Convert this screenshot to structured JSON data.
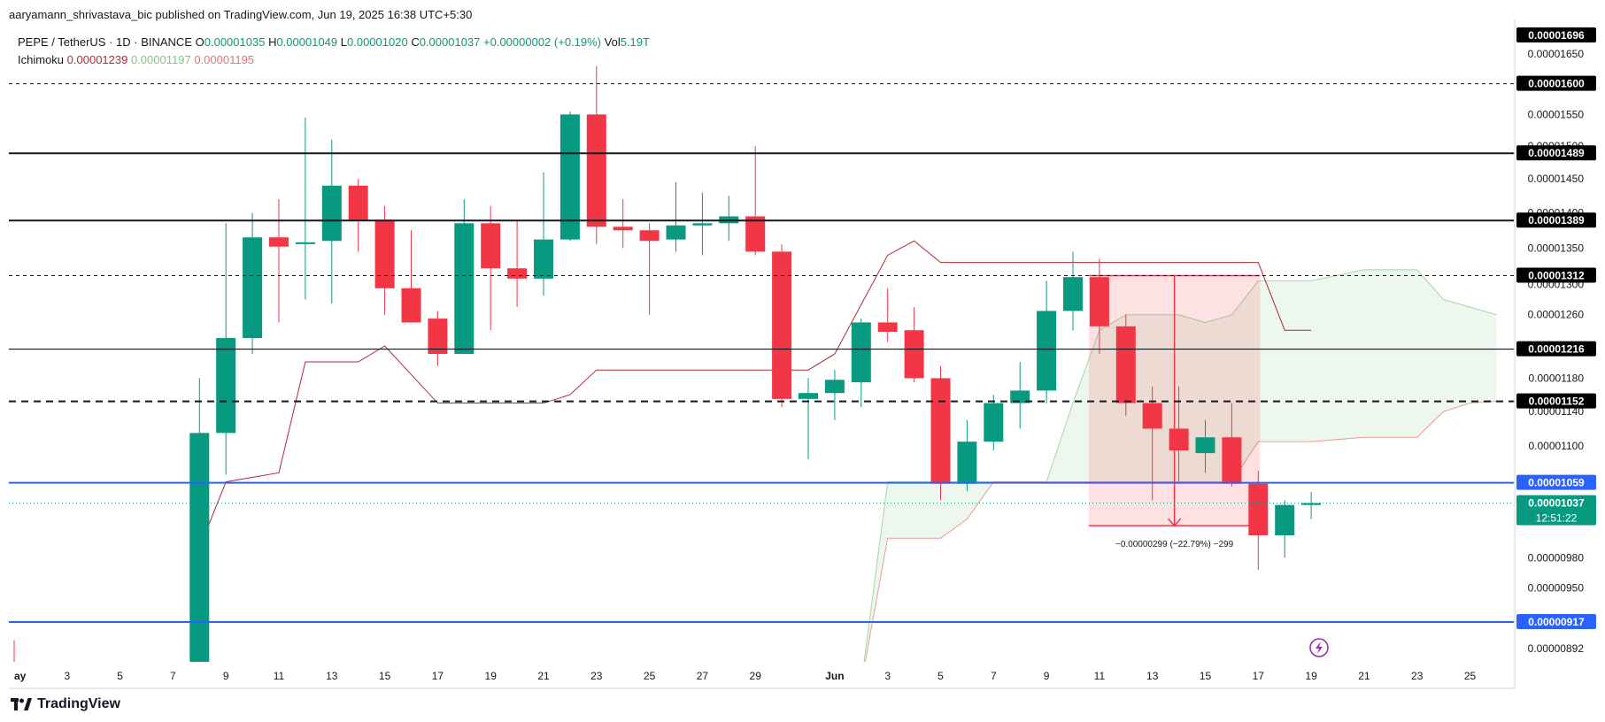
{
  "publish_line": "aaryamann_shrivastava_bic published on TradingView.com, Jun 19, 2025 16:38 UTC+5:30",
  "legend": {
    "symbol": "PEPE / TetherUS · 1D · BINANCE",
    "o_label": "O",
    "o_value": "0.00001035",
    "h_label": "H",
    "h_value": "0.00001049",
    "l_label": "L",
    "l_value": "0.00001020",
    "c_label": "C",
    "c_value": "0.00001037",
    "change": "+0.00000002 (+0.19%)",
    "vol_label": "Vol",
    "vol_value": "5.19T",
    "ichimoku_label": "Ichimoku",
    "ichimoku_values": [
      "0.00001239",
      "0.00001197",
      "0.00001195"
    ]
  },
  "footer": {
    "brand": "TradingView"
  },
  "colors": {
    "up": "#089981",
    "down": "#f23645",
    "tenkan": "#b22833",
    "blue_line": "#2962ff"
  },
  "chart_data": {
    "type": "candlestick",
    "symbol": "PEPE / TetherUS",
    "interval": "1D",
    "exchange": "BINANCE",
    "y_scale": "log",
    "y_range": [
      8.8e-06,
      1.71e-05
    ],
    "axis_ticks": [
      "0.00001650",
      "0.00001550",
      "0.00001500",
      "0.00001450",
      "0.00001400",
      "0.00001350",
      "0.00001300",
      "0.00001260",
      "0.00001180",
      "0.00001140",
      "0.00001100",
      "0.00000980",
      "0.00000950",
      "0.00000892"
    ],
    "x_ticks": [
      {
        "label": "May",
        "day": 1
      },
      {
        "label": "3",
        "day": 3
      },
      {
        "label": "5",
        "day": 5
      },
      {
        "label": "7",
        "day": 7
      },
      {
        "label": "9",
        "day": 9
      },
      {
        "label": "11",
        "day": 11
      },
      {
        "label": "13",
        "day": 13
      },
      {
        "label": "15",
        "day": 15
      },
      {
        "label": "17",
        "day": 17
      },
      {
        "label": "19",
        "day": 19
      },
      {
        "label": "21",
        "day": 21
      },
      {
        "label": "23",
        "day": 23
      },
      {
        "label": "25",
        "day": 25
      },
      {
        "label": "27",
        "day": 27
      },
      {
        "label": "29",
        "day": 29
      },
      {
        "label": "Jun",
        "day": 32
      },
      {
        "label": "3",
        "day": 34
      },
      {
        "label": "5",
        "day": 36
      },
      {
        "label": "7",
        "day": 38
      },
      {
        "label": "9",
        "day": 40
      },
      {
        "label": "11",
        "day": 42
      },
      {
        "label": "13",
        "day": 44
      },
      {
        "label": "15",
        "day": 46
      },
      {
        "label": "17",
        "day": 48
      },
      {
        "label": "19",
        "day": 50
      },
      {
        "label": "21",
        "day": 52
      },
      {
        "label": "23",
        "day": 54
      },
      {
        "label": "25",
        "day": 56
      }
    ],
    "candles": [
      {
        "day": 1,
        "o": 8.8e-06,
        "h": 9e-06,
        "l": 8.6e-06,
        "c": 8.7e-06
      },
      {
        "day": 8,
        "o": 8.6e-06,
        "h": 1.18e-05,
        "l": 8.6e-06,
        "c": 1.115e-05
      },
      {
        "day": 9,
        "o": 1.115e-05,
        "h": 1.385e-05,
        "l": 1.068e-05,
        "c": 1.23e-05
      },
      {
        "day": 10,
        "o": 1.23e-05,
        "h": 1.4e-05,
        "l": 1.21e-05,
        "c": 1.365e-05
      },
      {
        "day": 11,
        "o": 1.365e-05,
        "h": 1.42e-05,
        "l": 1.25e-05,
        "c": 1.352e-05
      },
      {
        "day": 12,
        "o": 1.358e-05,
        "h": 1.545e-05,
        "l": 1.28e-05,
        "c": 1.358e-05
      },
      {
        "day": 13,
        "o": 1.36e-05,
        "h": 1.51e-05,
        "l": 1.275e-05,
        "c": 1.44e-05
      },
      {
        "day": 14,
        "o": 1.44e-05,
        "h": 1.45e-05,
        "l": 1.345e-05,
        "c": 1.39e-05
      },
      {
        "day": 15,
        "o": 1.39e-05,
        "h": 1.41e-05,
        "l": 1.26e-05,
        "c": 1.295e-05
      },
      {
        "day": 16,
        "o": 1.295e-05,
        "h": 1.375e-05,
        "l": 1.25e-05,
        "c": 1.25e-05
      },
      {
        "day": 17,
        "o": 1.255e-05,
        "h": 1.265e-05,
        "l": 1.195e-05,
        "c": 1.21e-05
      },
      {
        "day": 18,
        "o": 1.21e-05,
        "h": 1.42e-05,
        "l": 1.21e-05,
        "c": 1.385e-05
      },
      {
        "day": 19,
        "o": 1.385e-05,
        "h": 1.41e-05,
        "l": 1.24e-05,
        "c": 1.322e-05
      },
      {
        "day": 20,
        "o": 1.322e-05,
        "h": 1.39e-05,
        "l": 1.27e-05,
        "c": 1.308e-05
      },
      {
        "day": 21,
        "o": 1.308e-05,
        "h": 1.46e-05,
        "l": 1.285e-05,
        "c": 1.362e-05
      },
      {
        "day": 22,
        "o": 1.362e-05,
        "h": 1.555e-05,
        "l": 1.36e-05,
        "c": 1.55e-05
      },
      {
        "day": 23,
        "o": 1.55e-05,
        "h": 1.63e-05,
        "l": 1.355e-05,
        "c": 1.38e-05
      },
      {
        "day": 24,
        "o": 1.38e-05,
        "h": 1.42e-05,
        "l": 1.35e-05,
        "c": 1.375e-05
      },
      {
        "day": 25,
        "o": 1.375e-05,
        "h": 1.385e-05,
        "l": 1.26e-05,
        "c": 1.36e-05
      },
      {
        "day": 26,
        "o": 1.362e-05,
        "h": 1.445e-05,
        "l": 1.345e-05,
        "c": 1.382e-05
      },
      {
        "day": 27,
        "o": 1.382e-05,
        "h": 1.43e-05,
        "l": 1.34e-05,
        "c": 1.385e-05
      },
      {
        "day": 28,
        "o": 1.385e-05,
        "h": 1.425e-05,
        "l": 1.36e-05,
        "c": 1.395e-05
      },
      {
        "day": 29,
        "o": 1.395e-05,
        "h": 1.5e-05,
        "l": 1.34e-05,
        "c": 1.345e-05
      },
      {
        "day": 30,
        "o": 1.345e-05,
        "h": 1.355e-05,
        "l": 1.145e-05,
        "c": 1.155e-05
      },
      {
        "day": 31,
        "o": 1.155e-05,
        "h": 1.18e-05,
        "l": 1.085e-05,
        "c": 1.162e-05
      },
      {
        "day": 32,
        "o": 1.162e-05,
        "h": 1.19e-05,
        "l": 1.13e-05,
        "c": 1.178e-05
      },
      {
        "day": 33,
        "o": 1.175e-05,
        "h": 1.255e-05,
        "l": 1.145e-05,
        "c": 1.25e-05
      },
      {
        "day": 34,
        "o": 1.25e-05,
        "h": 1.295e-05,
        "l": 1.225e-05,
        "c": 1.238e-05
      },
      {
        "day": 35,
        "o": 1.24e-05,
        "h": 1.27e-05,
        "l": 1.175e-05,
        "c": 1.18e-05
      },
      {
        "day": 36,
        "o": 1.18e-05,
        "h": 1.195e-05,
        "l": 1.04e-05,
        "c": 1.058e-05
      },
      {
        "day": 37,
        "o": 1.058e-05,
        "h": 1.13e-05,
        "l": 1.05e-05,
        "c": 1.105e-05
      },
      {
        "day": 38,
        "o": 1.105e-05,
        "h": 1.16e-05,
        "l": 1.095e-05,
        "c": 1.15e-05
      },
      {
        "day": 39,
        "o": 1.15e-05,
        "h": 1.2e-05,
        "l": 1.12e-05,
        "c": 1.165e-05
      },
      {
        "day": 40,
        "o": 1.165e-05,
        "h": 1.305e-05,
        "l": 1.15e-05,
        "c": 1.265e-05
      },
      {
        "day": 41,
        "o": 1.265e-05,
        "h": 1.345e-05,
        "l": 1.24e-05,
        "c": 1.31e-05
      },
      {
        "day": 42,
        "o": 1.31e-05,
        "h": 1.335e-05,
        "l": 1.21e-05,
        "c": 1.245e-05
      },
      {
        "day": 43,
        "o": 1.245e-05,
        "h": 1.26e-05,
        "l": 1.135e-05,
        "c": 1.15e-05
      },
      {
        "day": 44,
        "o": 1.15e-05,
        "h": 1.17e-05,
        "l": 1.04e-05,
        "c": 1.12e-05
      },
      {
        "day": 45,
        "o": 1.12e-05,
        "h": 1.17e-05,
        "l": 1.06e-05,
        "c": 1.095e-05
      },
      {
        "day": 46,
        "o": 1.092e-05,
        "h": 1.13e-05,
        "l": 1.07e-05,
        "c": 1.11e-05
      },
      {
        "day": 47,
        "o": 1.11e-05,
        "h": 1.15e-05,
        "l": 1.055e-05,
        "c": 1.058e-05
      },
      {
        "day": 48,
        "o": 1.058e-05,
        "h": 1.072e-05,
        "l": 9.68e-06,
        "c": 1.003e-05
      },
      {
        "day": 49,
        "o": 1.003e-05,
        "h": 1.04e-05,
        "l": 9.8e-06,
        "c": 1.035e-05
      },
      {
        "day": 50,
        "o": 1.035e-05,
        "h": 1.049e-05,
        "l": 1.02e-05,
        "c": 1.037e-05
      }
    ],
    "tenkan": [
      [
        8,
        9.9e-06
      ],
      [
        9,
        1.06e-05
      ],
      [
        11,
        1.07e-05
      ],
      [
        12,
        1.2e-05
      ],
      [
        14,
        1.2e-05
      ],
      [
        15,
        1.22e-05
      ],
      [
        17,
        1.15e-05
      ],
      [
        19,
        1.15e-05
      ],
      [
        21,
        1.15e-05
      ],
      [
        22,
        1.16e-05
      ],
      [
        23,
        1.19e-05
      ],
      [
        29,
        1.19e-05
      ],
      [
        30,
        1.19e-05
      ],
      [
        31,
        1.19e-05
      ],
      [
        32,
        1.21e-05
      ],
      [
        34,
        1.34e-05
      ],
      [
        35,
        1.36e-05
      ],
      [
        36,
        1.33e-05
      ],
      [
        48,
        1.33e-05
      ],
      [
        49,
        1.24e-05
      ],
      [
        50,
        1.24e-05
      ]
    ],
    "senkou_a": [
      [
        33,
        8.6e-06
      ],
      [
        34,
        1.06e-05
      ],
      [
        36,
        1.06e-05
      ],
      [
        37,
        1.06e-05
      ],
      [
        38,
        1.06e-05
      ],
      [
        39,
        1.06e-05
      ],
      [
        40,
        1.06e-05
      ],
      [
        41,
        1.15e-05
      ],
      [
        42,
        1.24e-05
      ],
      [
        43,
        1.26e-05
      ],
      [
        44,
        1.26e-05
      ],
      [
        45,
        1.26e-05
      ],
      [
        46,
        1.25e-05
      ],
      [
        47,
        1.26e-05
      ],
      [
        48,
        1.305e-05
      ],
      [
        50,
        1.305e-05
      ],
      [
        52,
        1.32e-05
      ],
      [
        53,
        1.32e-05
      ],
      [
        54,
        1.32e-05
      ],
      [
        55,
        1.28e-05
      ],
      [
        56,
        1.27e-05
      ],
      [
        57,
        1.26e-05
      ]
    ],
    "senkou_b": [
      [
        33,
        8.6e-06
      ],
      [
        34,
        1e-05
      ],
      [
        36,
        1e-05
      ],
      [
        37,
        1.02e-05
      ],
      [
        38,
        1.06e-05
      ],
      [
        39,
        1.06e-05
      ],
      [
        40,
        1.06e-05
      ],
      [
        41,
        1.06e-05
      ],
      [
        42,
        1.06e-05
      ],
      [
        43,
        1.06e-05
      ],
      [
        44,
        1.06e-05
      ],
      [
        45,
        1.06e-05
      ],
      [
        46,
        1.06e-05
      ],
      [
        47,
        1.06e-05
      ],
      [
        48,
        1.105e-05
      ],
      [
        50,
        1.105e-05
      ],
      [
        52,
        1.11e-05
      ],
      [
        53,
        1.11e-05
      ],
      [
        54,
        1.11e-05
      ],
      [
        55,
        1.14e-05
      ],
      [
        56,
        1.15e-05
      ],
      [
        57,
        1.152e-05
      ]
    ],
    "levels": [
      {
        "value": 1.6e-05,
        "label": "0.00001600",
        "style": "dashed",
        "color": "#131722"
      },
      {
        "value": 1.489e-05,
        "label": "0.00001489",
        "style": "solid",
        "color": "#131722"
      },
      {
        "value": 1.389e-05,
        "label": "0.00001389",
        "style": "solid",
        "color": "#131722"
      },
      {
        "value": 1.312e-05,
        "label": "0.00001312",
        "style": "dashed",
        "color": "#131722"
      },
      {
        "value": 1.216e-05,
        "label": "0.00001216",
        "style": "solid",
        "color": "#131722"
      },
      {
        "value": 1.152e-05,
        "label": "0.00001152",
        "style": "dashed-bold",
        "color": "#131722"
      },
      {
        "value": 1.059e-05,
        "label": "0.00001059",
        "style": "solid",
        "color": "#2962ff"
      },
      {
        "value": 9.17e-06,
        "label": "0.00000917",
        "style": "solid",
        "color": "#2962ff"
      }
    ],
    "top_price_label": "0.00001696",
    "current_price": {
      "value": 1.037e-05,
      "label": "0.00001037",
      "countdown": "12:51:22"
    },
    "measurement": {
      "from_day": 42,
      "to_day": 48,
      "top": 1.312e-05,
      "bottom": 1.013e-05,
      "text": "−0.00000299 (−22.79%) −299"
    }
  }
}
